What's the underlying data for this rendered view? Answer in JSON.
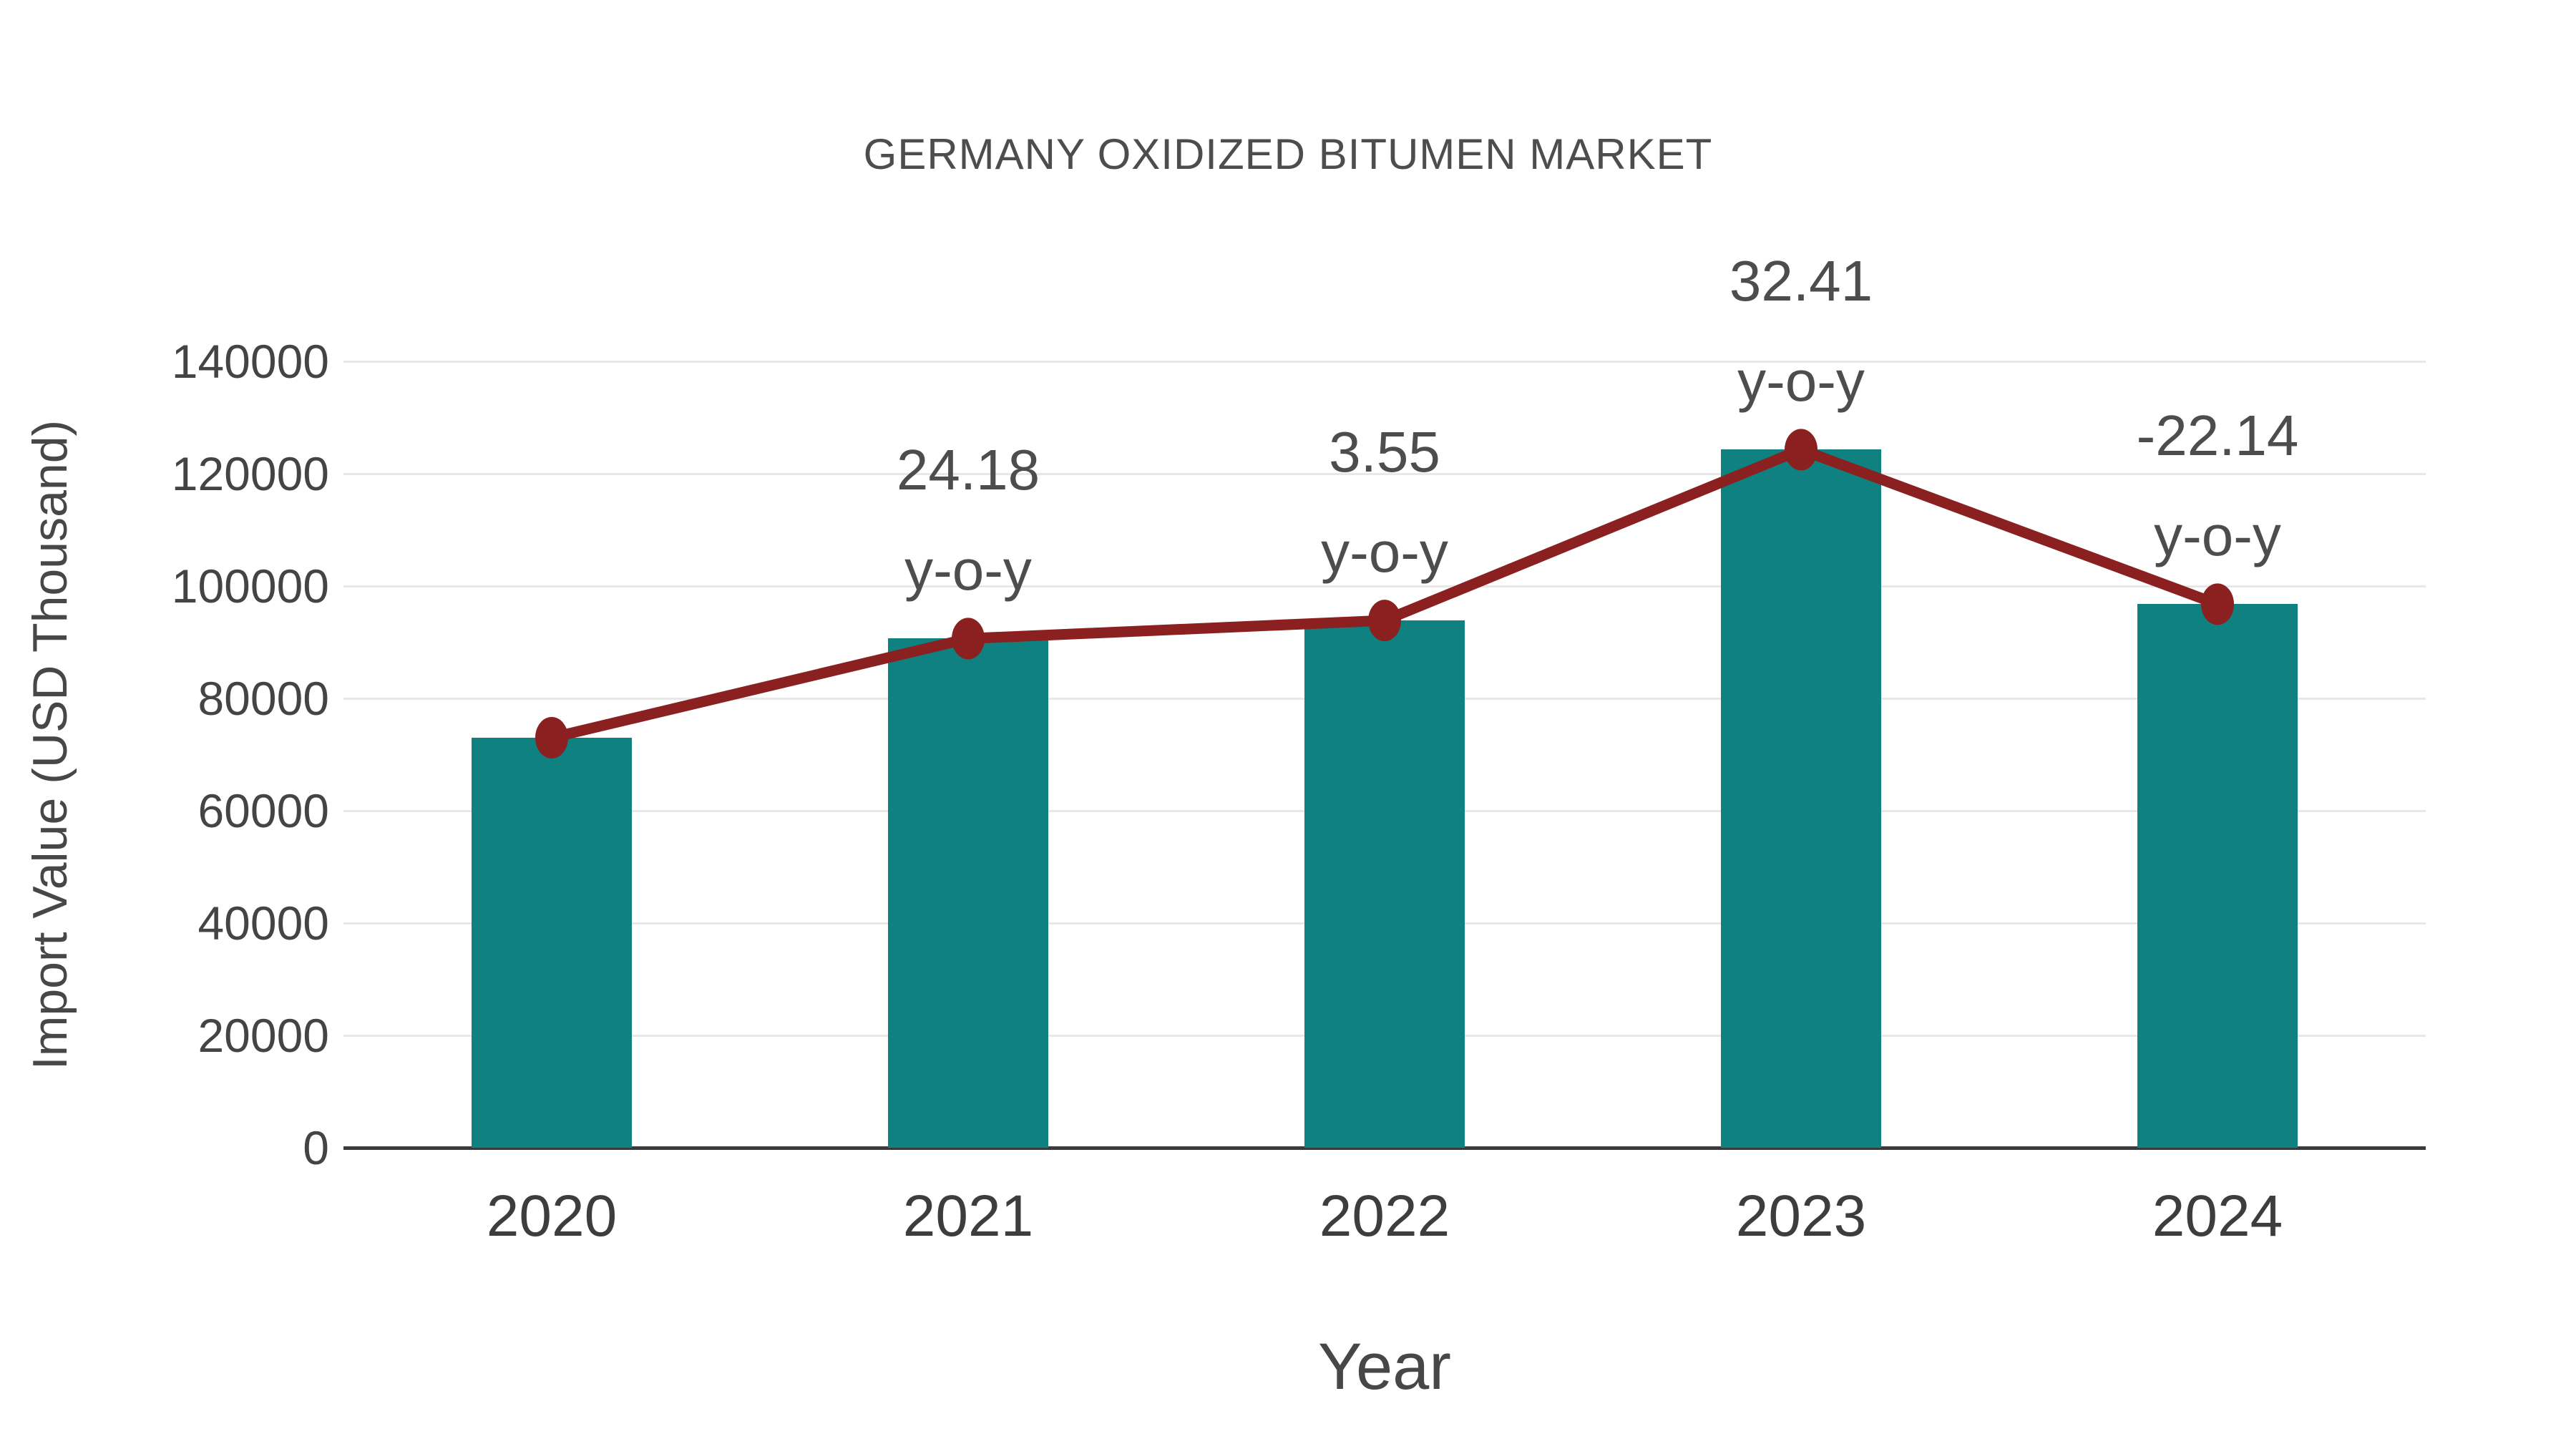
{
  "chart_data": {
    "type": "bar",
    "title": "GERMANY OXIDIZED BITUMEN MARKET",
    "xlabel": "Year",
    "ylabel": "Import Value (USD Thousand)",
    "categories": [
      "2020",
      "2021",
      "2022",
      "2023",
      "2024"
    ],
    "series": [
      {
        "name": "Import Value (USD Thousand)",
        "type": "bar",
        "color": "#0E8180",
        "values": [
          73000,
          90650,
          93870,
          124280,
          96770
        ]
      },
      {
        "name": "y-o-y trend line",
        "type": "line",
        "color": "#8B2020",
        "values": [
          73000,
          90650,
          93870,
          124280,
          96770
        ]
      }
    ],
    "annotations": [
      {
        "category": "2021",
        "line1": "24.18",
        "line2": "y-o-y"
      },
      {
        "category": "2022",
        "line1": "3.55",
        "line2": "y-o-y"
      },
      {
        "category": "2023",
        "line1": "32.41",
        "line2": "y-o-y"
      },
      {
        "category": "2024",
        "line1": "-22.14",
        "line2": "y-o-y"
      }
    ],
    "ylim": [
      0,
      140000
    ],
    "yticks": [
      0,
      20000,
      40000,
      60000,
      80000,
      100000,
      120000,
      140000
    ],
    "grid": true,
    "legend": false
  },
  "colors": {
    "bar": "#0E8180",
    "line": "#8B2020",
    "marker": "#8B2020",
    "grid": "#E8E8E8",
    "axis_line": "#3A3A3A",
    "tick_text": "#444444",
    "title_text": "#4D4D4D",
    "background": "#FFFFFF"
  }
}
